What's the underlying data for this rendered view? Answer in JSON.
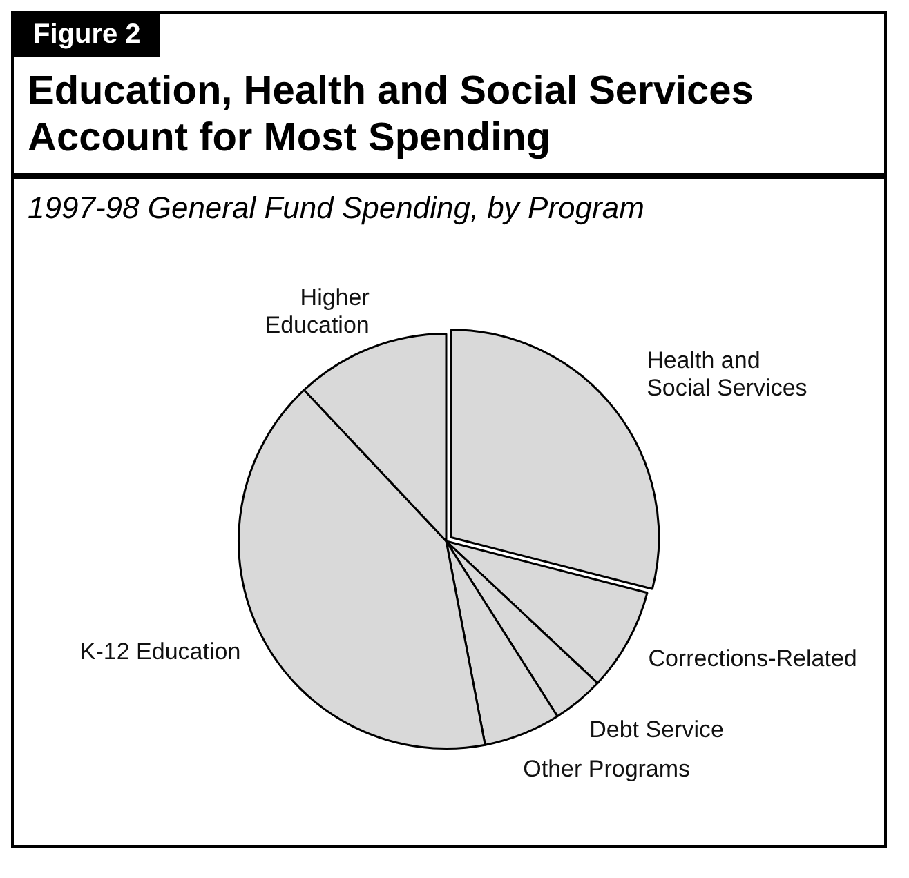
{
  "chart_data": {
    "type": "pie",
    "title": "Education, Health and Social Services Account for Most Spending",
    "subtitle": "1997-98 General Fund Spending, by Program",
    "annotations": [
      "Figure 2"
    ],
    "categories": [
      "Health and Social Services",
      "Corrections-Related",
      "Debt Service",
      "Other Programs",
      "K-12 Education",
      "Higher Education"
    ],
    "values": [
      29,
      8,
      4,
      6,
      41,
      12
    ],
    "colors": [
      "#d9d9d9",
      "#d9d9d9",
      "#d9d9d9",
      "#d9d9d9",
      "#d9d9d9",
      "#d9d9d9"
    ],
    "legend": false
  }
}
